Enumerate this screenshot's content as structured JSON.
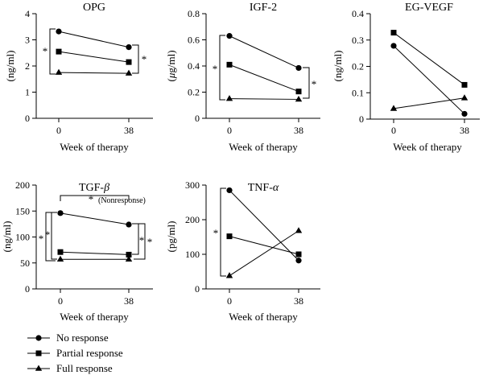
{
  "chart_data": [
    {
      "id": "opg",
      "type": "line",
      "title": "OPG",
      "xlabel": "Week of therapy",
      "ylabel": "(ng/ml)",
      "categories": [
        "0",
        "38"
      ],
      "ylim": [
        0,
        4
      ],
      "yticks": [
        "0",
        "1",
        "2",
        "3",
        "4"
      ],
      "series": [
        {
          "name": "No response",
          "marker": "circle",
          "values": [
            3.32,
            2.72
          ]
        },
        {
          "name": "Partial response",
          "marker": "square",
          "values": [
            2.55,
            2.15
          ]
        },
        {
          "name": "Full response",
          "marker": "triangle",
          "values": [
            1.75,
            1.72
          ]
        }
      ],
      "annotations": [
        "*",
        "*"
      ]
    },
    {
      "id": "igf2",
      "type": "line",
      "title": "IGF-2",
      "xlabel": "Week of therapy",
      "ylabel_prefix": "(",
      "ylabel_greek": "μ",
      "ylabel_suffix": "g/ml)",
      "categories": [
        "0",
        "38"
      ],
      "ylim": [
        0,
        0.8
      ],
      "yticks": [
        "0",
        "0.2",
        "0.4",
        "0.6",
        "0.8"
      ],
      "series": [
        {
          "name": "No response",
          "marker": "circle",
          "values": [
            0.63,
            0.385
          ]
        },
        {
          "name": "Partial response",
          "marker": "square",
          "values": [
            0.41,
            0.205
          ]
        },
        {
          "name": "Full response",
          "marker": "triangle",
          "values": [
            0.15,
            0.145
          ]
        }
      ],
      "annotations": [
        "*",
        "*"
      ]
    },
    {
      "id": "egvegf",
      "type": "line",
      "title": "EG-VEGF",
      "xlabel": "Week of therapy",
      "ylabel": "(ng/ml)",
      "categories": [
        "0",
        "38"
      ],
      "ylim": [
        0,
        0.4
      ],
      "yticks": [
        "0",
        "0.1",
        "0.2",
        "0.3",
        "0.4"
      ],
      "series": [
        {
          "name": "No response",
          "marker": "circle",
          "values": [
            0.278,
            0.02
          ]
        },
        {
          "name": "Partial response",
          "marker": "square",
          "values": [
            0.328,
            0.13
          ]
        },
        {
          "name": "Full response",
          "marker": "triangle",
          "values": [
            0.04,
            0.08
          ]
        }
      ],
      "annotations": []
    },
    {
      "id": "tgfb",
      "type": "line",
      "title_prefix": "TGF-",
      "title_greek": "β",
      "xlabel": "Week of therapy",
      "ylabel": "(ng/ml)",
      "categories": [
        "0",
        "38"
      ],
      "ylim": [
        0,
        200
      ],
      "yticks": [
        "0",
        "50",
        "100",
        "150",
        "200"
      ],
      "series": [
        {
          "name": "No response",
          "marker": "circle",
          "values": [
            146,
            124
          ]
        },
        {
          "name": "Partial response",
          "marker": "square",
          "values": [
            71,
            66
          ]
        },
        {
          "name": "Full response",
          "marker": "triangle",
          "values": [
            57,
            57
          ]
        }
      ],
      "annotations": [
        "*",
        "*",
        "*",
        "*",
        "*"
      ],
      "note": "(Nonresponse)"
    },
    {
      "id": "tnfa",
      "type": "line",
      "title_prefix": "TNF-",
      "title_greek": "α",
      "xlabel": "Week of therapy",
      "ylabel": "(pg/ml)",
      "categories": [
        "0",
        "38"
      ],
      "ylim": [
        0,
        300
      ],
      "yticks": [
        "0",
        "100",
        "200",
        "300"
      ],
      "series": [
        {
          "name": "No response",
          "marker": "circle",
          "values": [
            285,
            82
          ]
        },
        {
          "name": "Partial response",
          "marker": "square",
          "values": [
            152,
            100
          ]
        },
        {
          "name": "Full response",
          "marker": "triangle",
          "values": [
            38,
            168
          ]
        }
      ],
      "annotations": [
        "*"
      ]
    }
  ],
  "legend": [
    {
      "label": "No response",
      "marker": "circle"
    },
    {
      "label": "Partial response",
      "marker": "square"
    },
    {
      "label": "Full response",
      "marker": "triangle"
    }
  ]
}
